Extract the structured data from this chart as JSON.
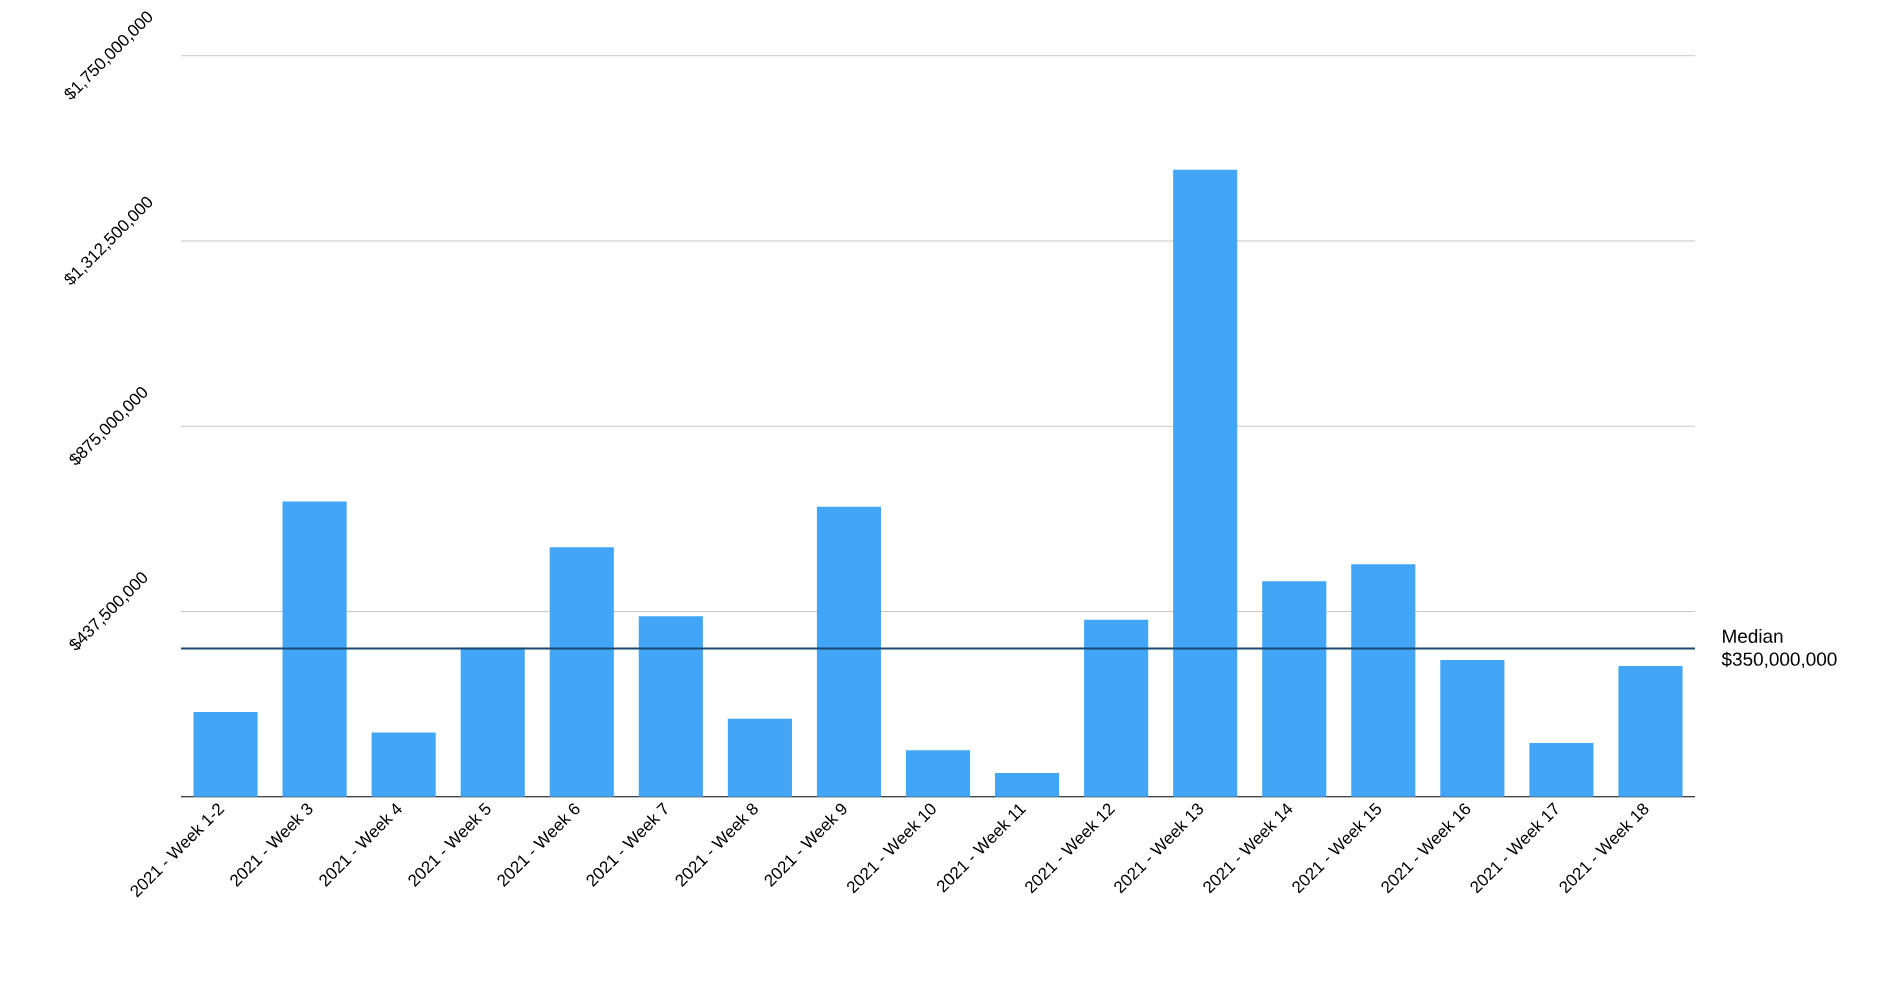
{
  "chart_data": {
    "type": "bar",
    "categories": [
      "2021 - Week 1-2",
      "2021 - Week 3",
      "2021 - Week 4",
      "2021 - Week 5",
      "2021 - Week 6",
      "2021 - Week 7",
      "2021 - Week 8",
      "2021 - Week 9",
      "2021 - Week 10",
      "2021 - Week 11",
      "2021 - Week 12",
      "2021 - Week 13",
      "2021 - Week 14",
      "2021 - Week 15",
      "2021 - Week 16",
      "2021 - Week 17",
      "2021 - Week 18"
    ],
    "values": [
      200000000,
      697000000,
      152000000,
      352000000,
      589000000,
      426000000,
      184000000,
      685000000,
      110000000,
      56000000,
      418000000,
      1481000000,
      509000000,
      549000000,
      323000000,
      127000000,
      309000000
    ],
    "color": "#42a5f5",
    "ylim": [
      0,
      1750000000
    ],
    "yticks": [
      {
        "value": 437500000,
        "label": "$437,500,000"
      },
      {
        "value": 875000000,
        "label": "$875,000,000"
      },
      {
        "value": 1312500000,
        "label": "$1,312,500,000"
      },
      {
        "value": 1750000000,
        "label": "$1,750,000,000"
      }
    ],
    "grid": "y",
    "ref_lines": [
      {
        "axis": "y",
        "value": 350000000,
        "label": "Median $350,000,000",
        "color": "#1a4a72"
      }
    ]
  }
}
